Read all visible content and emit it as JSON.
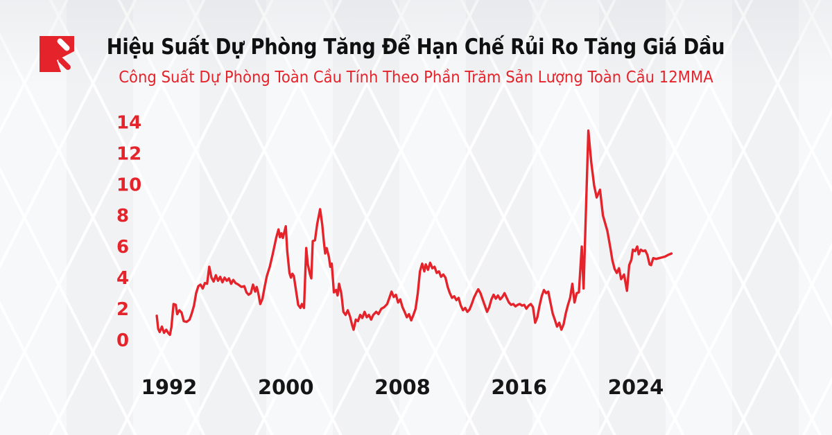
{
  "header": {
    "title": "Hiệu Suất Dự Phòng Tăng Để Hạn Chế Rủi Ro Tăng Giá Dầu",
    "subtitle": "Công Suất Dự Phòng Toàn Cầu Tính Theo Phần Trăm Sản Lượng Toàn Cầu 12MMA"
  },
  "logo": {
    "icon": "brand-mark-red-square-with-diagonal-strokes",
    "color": "#e4232b"
  },
  "colors": {
    "accent_red": "#e4232b",
    "grid_red": "#e53238",
    "grid_red_faded": "#f0a4a7",
    "year_line_dark": "#2e2e2e",
    "text_dark": "#101010",
    "background": "#f2f3f5"
  },
  "chart_data": {
    "type": "line",
    "title": "Hiệu Suất Dự Phòng Tăng Để Hạn Chế Rủi Ro Tăng Giá Dầu",
    "subtitle": "Công Suất Dự Phòng Toàn Cầu Tính Theo Phần Trăm Sản Lượng Toàn Cầu 12MMA",
    "xlabel": "",
    "ylabel": "",
    "ylim": [
      0,
      14
    ],
    "y_ticks": [
      0,
      2,
      4,
      6,
      8,
      10,
      12,
      14
    ],
    "x_ticks": [
      1992,
      2000,
      2008,
      2016,
      2024
    ],
    "grid": "horizontal red gridlines fading right; dark vertical lines at year ticks",
    "legend": "none",
    "series": [
      {
        "name": "Công suất dự phòng toàn cầu (% sản lượng toàn cầu, 12MMA)",
        "color": "#e4232b",
        "points": [
          [
            1991.15,
            1.85
          ],
          [
            1991.25,
            1.0
          ],
          [
            1991.35,
            0.8
          ],
          [
            1991.5,
            1.15
          ],
          [
            1991.65,
            0.75
          ],
          [
            1991.8,
            0.95
          ],
          [
            1991.95,
            0.72
          ],
          [
            1992.05,
            0.62
          ],
          [
            1992.15,
            1.1
          ],
          [
            1992.3,
            2.6
          ],
          [
            1992.45,
            2.55
          ],
          [
            1992.55,
            1.95
          ],
          [
            1992.7,
            2.2
          ],
          [
            1992.85,
            2.05
          ],
          [
            1993.0,
            1.5
          ],
          [
            1993.2,
            1.45
          ],
          [
            1993.4,
            1.6
          ],
          [
            1993.55,
            2.0
          ],
          [
            1993.7,
            2.5
          ],
          [
            1993.85,
            3.3
          ],
          [
            1994.0,
            3.75
          ],
          [
            1994.15,
            3.85
          ],
          [
            1994.3,
            3.6
          ],
          [
            1994.45,
            3.95
          ],
          [
            1994.6,
            3.9
          ],
          [
            1994.75,
            5.0
          ],
          [
            1994.9,
            4.3
          ],
          [
            1995.05,
            4.05
          ],
          [
            1995.2,
            4.45
          ],
          [
            1995.35,
            4.1
          ],
          [
            1995.5,
            4.35
          ],
          [
            1995.65,
            4.0
          ],
          [
            1995.8,
            4.3
          ],
          [
            1995.95,
            4.1
          ],
          [
            1996.1,
            4.25
          ],
          [
            1996.25,
            3.9
          ],
          [
            1996.4,
            4.15
          ],
          [
            1996.55,
            3.95
          ],
          [
            1996.75,
            3.85
          ],
          [
            1996.95,
            3.7
          ],
          [
            1997.15,
            3.75
          ],
          [
            1997.3,
            3.35
          ],
          [
            1997.45,
            3.2
          ],
          [
            1997.6,
            3.3
          ],
          [
            1997.75,
            3.85
          ],
          [
            1997.9,
            3.4
          ],
          [
            1998.0,
            3.7
          ],
          [
            1998.1,
            3.35
          ],
          [
            1998.25,
            2.6
          ],
          [
            1998.4,
            2.95
          ],
          [
            1998.55,
            3.7
          ],
          [
            1998.7,
            4.4
          ],
          [
            1998.9,
            5.0
          ],
          [
            1999.1,
            5.8
          ],
          [
            1999.35,
            6.9
          ],
          [
            1999.5,
            7.4
          ],
          [
            1999.6,
            6.9
          ],
          [
            1999.7,
            7.15
          ],
          [
            1999.8,
            6.85
          ],
          [
            2000.0,
            7.6
          ],
          [
            2000.1,
            6.0
          ],
          [
            2000.25,
            4.6
          ],
          [
            2000.35,
            4.3
          ],
          [
            2000.45,
            4.55
          ],
          [
            2000.55,
            4.4
          ],
          [
            2000.7,
            3.45
          ],
          [
            2000.85,
            2.55
          ],
          [
            2001.0,
            2.35
          ],
          [
            2001.1,
            2.6
          ],
          [
            2001.25,
            2.35
          ],
          [
            2001.4,
            6.2
          ],
          [
            2001.5,
            5.2
          ],
          [
            2001.65,
            4.55
          ],
          [
            2001.75,
            4.25
          ],
          [
            2001.85,
            6.65
          ],
          [
            2002.0,
            6.7
          ],
          [
            2002.15,
            7.75
          ],
          [
            2002.35,
            8.7
          ],
          [
            2002.5,
            7.7
          ],
          [
            2002.6,
            6.7
          ],
          [
            2002.7,
            5.85
          ],
          [
            2002.8,
            6.2
          ],
          [
            2002.95,
            5.65
          ],
          [
            2003.05,
            5.0
          ],
          [
            2003.15,
            5.2
          ],
          [
            2003.3,
            3.35
          ],
          [
            2003.45,
            3.5
          ],
          [
            2003.55,
            3.15
          ],
          [
            2003.65,
            3.9
          ],
          [
            2003.8,
            3.3
          ],
          [
            2003.95,
            2.1
          ],
          [
            2004.1,
            1.9
          ],
          [
            2004.25,
            2.2
          ],
          [
            2004.4,
            1.8
          ],
          [
            2004.55,
            1.25
          ],
          [
            2004.65,
            0.95
          ],
          [
            2004.8,
            1.6
          ],
          [
            2004.95,
            1.5
          ],
          [
            2005.1,
            1.9
          ],
          [
            2005.25,
            1.7
          ],
          [
            2005.4,
            2.1
          ],
          [
            2005.55,
            1.75
          ],
          [
            2005.7,
            1.9
          ],
          [
            2005.85,
            1.6
          ],
          [
            2006.0,
            1.9
          ],
          [
            2006.2,
            2.1
          ],
          [
            2006.35,
            1.95
          ],
          [
            2006.55,
            2.3
          ],
          [
            2006.75,
            2.4
          ],
          [
            2006.95,
            2.6
          ],
          [
            2007.1,
            3.0
          ],
          [
            2007.25,
            3.4
          ],
          [
            2007.4,
            3.05
          ],
          [
            2007.55,
            3.2
          ],
          [
            2007.7,
            2.7
          ],
          [
            2007.85,
            2.9
          ],
          [
            2008.0,
            2.4
          ],
          [
            2008.15,
            2.1
          ],
          [
            2008.3,
            1.75
          ],
          [
            2008.45,
            1.95
          ],
          [
            2008.6,
            1.55
          ],
          [
            2008.75,
            1.9
          ],
          [
            2008.9,
            2.3
          ],
          [
            2009.05,
            3.3
          ],
          [
            2009.2,
            4.7
          ],
          [
            2009.35,
            5.2
          ],
          [
            2009.5,
            4.7
          ],
          [
            2009.6,
            5.15
          ],
          [
            2009.75,
            4.8
          ],
          [
            2009.9,
            5.25
          ],
          [
            2010.05,
            4.9
          ],
          [
            2010.2,
            5.0
          ],
          [
            2010.35,
            4.6
          ],
          [
            2010.5,
            4.7
          ],
          [
            2010.65,
            4.35
          ],
          [
            2010.8,
            4.5
          ],
          [
            2010.95,
            4.3
          ],
          [
            2011.1,
            3.7
          ],
          [
            2011.25,
            3.3
          ],
          [
            2011.4,
            3.0
          ],
          [
            2011.55,
            3.1
          ],
          [
            2011.7,
            2.85
          ],
          [
            2011.85,
            3.0
          ],
          [
            2012.0,
            2.5
          ],
          [
            2012.15,
            2.2
          ],
          [
            2012.3,
            2.35
          ],
          [
            2012.45,
            2.1
          ],
          [
            2012.6,
            2.25
          ],
          [
            2012.75,
            2.6
          ],
          [
            2012.9,
            3.0
          ],
          [
            2013.05,
            3.3
          ],
          [
            2013.2,
            3.55
          ],
          [
            2013.35,
            3.3
          ],
          [
            2013.5,
            2.9
          ],
          [
            2013.65,
            2.5
          ],
          [
            2013.8,
            2.1
          ],
          [
            2013.95,
            2.4
          ],
          [
            2014.1,
            2.9
          ],
          [
            2014.25,
            3.2
          ],
          [
            2014.4,
            2.95
          ],
          [
            2014.55,
            3.15
          ],
          [
            2014.7,
            2.9
          ],
          [
            2014.85,
            3.05
          ],
          [
            2015.0,
            3.3
          ],
          [
            2015.15,
            3.0
          ],
          [
            2015.3,
            2.7
          ],
          [
            2015.45,
            2.55
          ],
          [
            2015.6,
            2.6
          ],
          [
            2015.75,
            2.45
          ],
          [
            2015.9,
            2.55
          ],
          [
            2016.05,
            2.6
          ],
          [
            2016.2,
            2.5
          ],
          [
            2016.35,
            2.55
          ],
          [
            2016.5,
            2.3
          ],
          [
            2016.65,
            2.5
          ],
          [
            2016.8,
            2.6
          ],
          [
            2016.95,
            2.4
          ],
          [
            2017.1,
            1.4
          ],
          [
            2017.25,
            1.75
          ],
          [
            2017.4,
            2.5
          ],
          [
            2017.55,
            3.1
          ],
          [
            2017.7,
            3.5
          ],
          [
            2017.85,
            3.3
          ],
          [
            2018.0,
            3.4
          ],
          [
            2018.15,
            2.7
          ],
          [
            2018.3,
            2.0
          ],
          [
            2018.45,
            1.6
          ],
          [
            2018.6,
            1.15
          ],
          [
            2018.75,
            1.4
          ],
          [
            2018.9,
            0.95
          ],
          [
            2019.05,
            1.3
          ],
          [
            2019.2,
            2.0
          ],
          [
            2019.35,
            2.55
          ],
          [
            2019.5,
            3.0
          ],
          [
            2019.65,
            3.9
          ],
          [
            2019.8,
            2.7
          ],
          [
            2019.95,
            3.3
          ],
          [
            2020.1,
            3.35
          ],
          [
            2020.3,
            6.3
          ],
          [
            2020.42,
            3.6
          ],
          [
            2020.75,
            13.75
          ],
          [
            2020.95,
            11.7
          ],
          [
            2021.15,
            10.2
          ],
          [
            2021.32,
            9.45
          ],
          [
            2021.55,
            9.95
          ],
          [
            2021.75,
            8.3
          ],
          [
            2022.05,
            7.3
          ],
          [
            2022.25,
            6.25
          ],
          [
            2022.4,
            5.4
          ],
          [
            2022.55,
            4.85
          ],
          [
            2022.7,
            4.6
          ],
          [
            2022.85,
            4.9
          ],
          [
            2023.0,
            4.2
          ],
          [
            2023.2,
            4.5
          ],
          [
            2023.4,
            3.45
          ],
          [
            2023.55,
            5.1
          ],
          [
            2023.7,
            5.45
          ],
          [
            2023.8,
            6.1
          ],
          [
            2023.95,
            6.0
          ],
          [
            2024.1,
            6.3
          ],
          [
            2024.2,
            5.8
          ],
          [
            2024.35,
            6.1
          ],
          [
            2024.5,
            6.0
          ],
          [
            2024.65,
            6.05
          ],
          [
            2024.8,
            5.75
          ],
          [
            2024.95,
            5.15
          ],
          [
            2025.05,
            5.1
          ],
          [
            2025.2,
            5.55
          ],
          [
            2025.4,
            5.5
          ],
          [
            2025.6,
            5.55
          ],
          [
            2025.8,
            5.6
          ],
          [
            2026.0,
            5.65
          ],
          [
            2026.2,
            5.75
          ],
          [
            2026.45,
            5.85
          ]
        ]
      }
    ]
  }
}
